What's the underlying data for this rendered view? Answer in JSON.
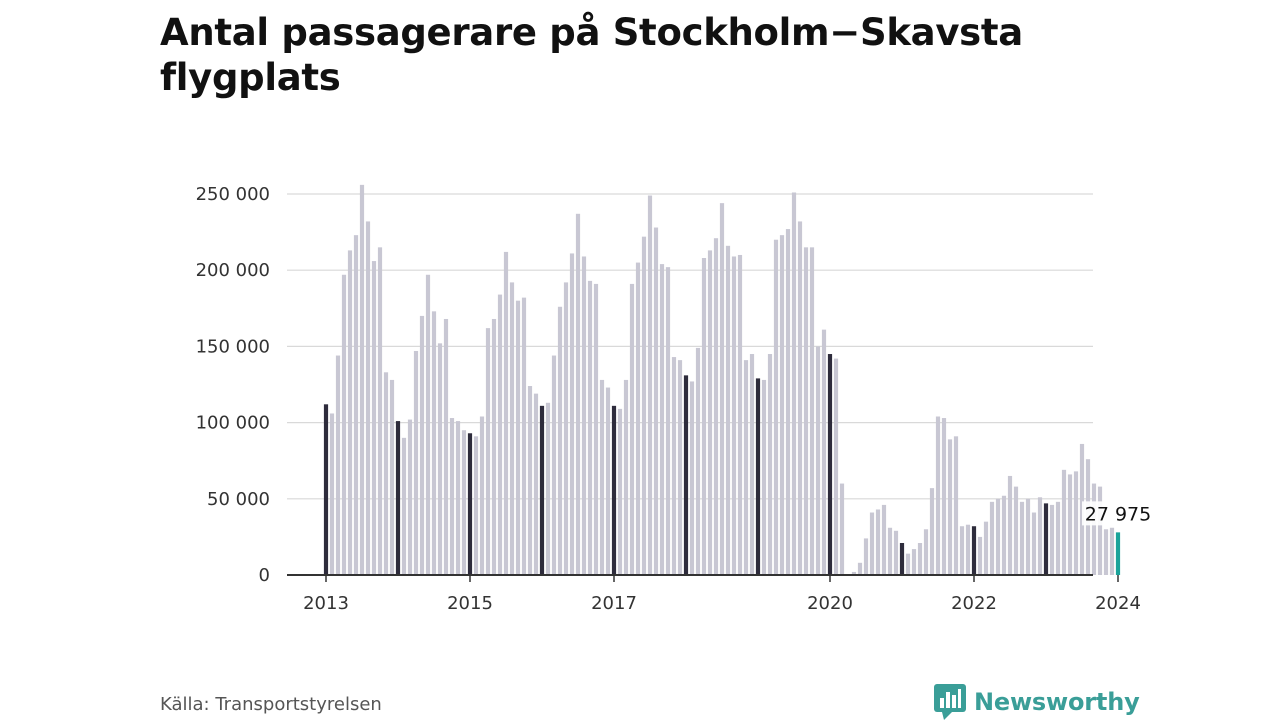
{
  "title": "Antal passagerare på Stockholm−Skavsta flygplats",
  "source": "Källa: Transportstyrelsen",
  "brand": {
    "name": "Newsworthy",
    "icon": "bar-chart-speech-bubble-icon",
    "color": "#3a9e98"
  },
  "colors": {
    "bar": "#c8c7d3",
    "january_bar": "#2e2c3c",
    "latest_bar": "#1aa39a",
    "grid": "#d9d9d9",
    "axis": "#333333"
  },
  "chart_data": {
    "type": "bar",
    "title": "Antal passagerare på Stockholm−Skavsta flygplats",
    "frequency": "monthly",
    "start": "2013-01",
    "end": "2024-01",
    "ylim": [
      0,
      250000
    ],
    "yticks": [
      0,
      50000,
      100000,
      150000,
      200000,
      250000
    ],
    "ytick_labels": [
      "0",
      "50 000",
      "100 000",
      "150 000",
      "200 000",
      "250 000"
    ],
    "xticks": [
      "2013-01",
      "2015-01",
      "2017-01",
      "2020-01",
      "2022-01",
      "2024-01"
    ],
    "xtick_labels": [
      "2013",
      "2015",
      "2017",
      "2020",
      "2022",
      "2024"
    ],
    "grid": true,
    "highlight": "January bars dark, latest bar teal",
    "annotation": {
      "x": "2024-01",
      "value": 27975,
      "label": "27 975"
    },
    "values": [
      112000,
      106000,
      144000,
      197000,
      213000,
      223000,
      256000,
      232000,
      206000,
      215000,
      133000,
      128000,
      101000,
      90000,
      102000,
      147000,
      170000,
      197000,
      173000,
      152000,
      168000,
      103000,
      101000,
      95000,
      93000,
      91000,
      104000,
      162000,
      168000,
      184000,
      212000,
      192000,
      180000,
      182000,
      124000,
      119000,
      111000,
      113000,
      144000,
      176000,
      192000,
      211000,
      237000,
      209000,
      193000,
      191000,
      128000,
      123000,
      111000,
      109000,
      128000,
      191000,
      205000,
      222000,
      249000,
      228000,
      204000,
      202000,
      143000,
      141000,
      131000,
      127000,
      149000,
      208000,
      213000,
      221000,
      244000,
      216000,
      209000,
      210000,
      141000,
      145000,
      129000,
      128000,
      145000,
      220000,
      223000,
      227000,
      251000,
      232000,
      215000,
      215000,
      150000,
      161000,
      145000,
      142000,
      60000,
      0,
      2000,
      8000,
      24000,
      41000,
      43000,
      46000,
      31000,
      29000,
      21000,
      14000,
      17000,
      21000,
      30000,
      57000,
      104000,
      103000,
      89000,
      91000,
      32000,
      33000,
      32000,
      25000,
      35000,
      48000,
      50000,
      52000,
      65000,
      58000,
      48000,
      50000,
      41000,
      51000,
      47000,
      46000,
      48000,
      69000,
      66000,
      68000,
      86000,
      76000,
      60000,
      58000,
      30000,
      31000,
      27975
    ]
  }
}
